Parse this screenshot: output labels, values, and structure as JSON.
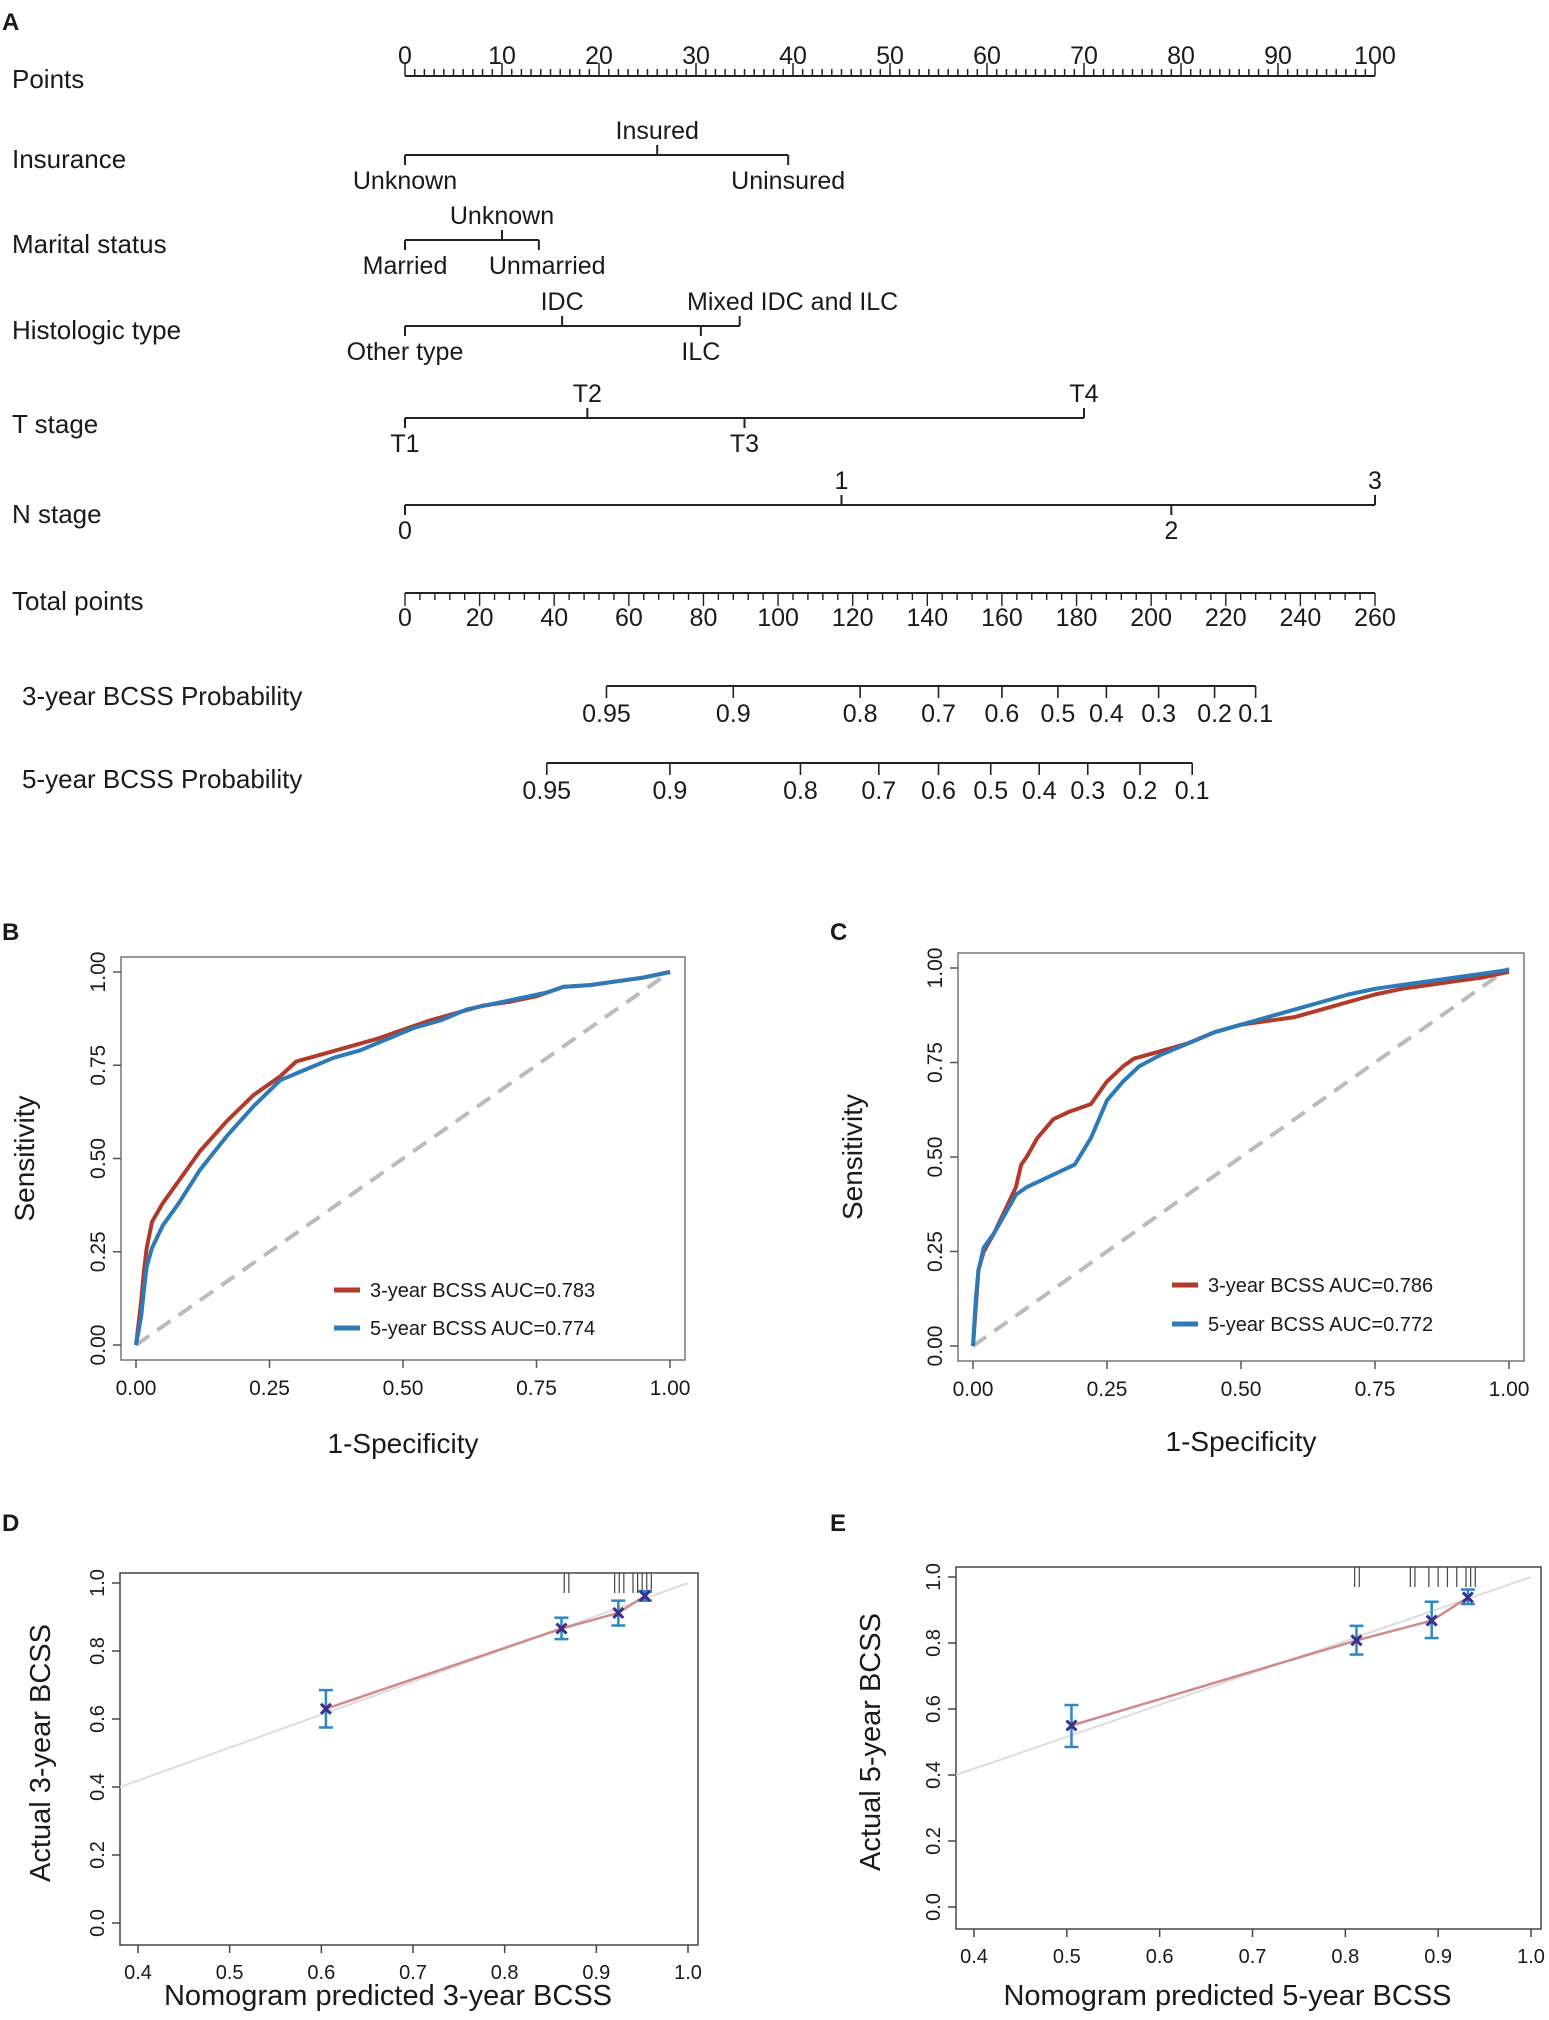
{
  "panels": {
    "A": "A",
    "B": "B",
    "C": "C",
    "D": "D",
    "E": "E"
  },
  "chart_data": [
    {
      "type": "nomogram",
      "panel": "A",
      "points_axis": {
        "label": "Points",
        "range": [
          0,
          100
        ],
        "tick_labels": [
          "0",
          "10",
          "20",
          "30",
          "40",
          "50",
          "60",
          "70",
          "80",
          "90",
          "100"
        ],
        "tick_values": [
          0,
          10,
          20,
          30,
          40,
          50,
          60,
          70,
          80,
          90,
          100
        ]
      },
      "variables": [
        {
          "label": "Insurance",
          "levels": [
            {
              "name": "Unknown",
              "points": 0,
              "side": "below"
            },
            {
              "name": "Insured",
              "points": 26,
              "side": "above"
            },
            {
              "name": "Uninsured",
              "points": 39.5,
              "side": "below"
            }
          ]
        },
        {
          "label": "Marital status",
          "levels": [
            {
              "name": "Married",
              "points": 0,
              "side": "below"
            },
            {
              "name": "Unknown",
              "points": 10,
              "side": "above"
            },
            {
              "name": "Unmarried",
              "points": 13.8,
              "side": "below"
            }
          ]
        },
        {
          "label": "Histologic type",
          "levels": [
            {
              "name": "Other type",
              "points": 0,
              "side": "below"
            },
            {
              "name": "IDC",
              "points": 16.2,
              "side": "above"
            },
            {
              "name": "ILC",
              "points": 30.5,
              "side": "below"
            },
            {
              "name": "Mixed IDC and ILC",
              "points": 34.5,
              "side": "above"
            }
          ]
        },
        {
          "label": "T stage",
          "levels": [
            {
              "name": "T1",
              "points": 0,
              "side": "below"
            },
            {
              "name": "T2",
              "points": 18.8,
              "side": "above"
            },
            {
              "name": "T3",
              "points": 35,
              "side": "below"
            },
            {
              "name": "T4",
              "points": 70,
              "side": "above"
            }
          ]
        },
        {
          "label": "N stage",
          "levels": [
            {
              "name": "0",
              "points": 0,
              "side": "below"
            },
            {
              "name": "1",
              "points": 45,
              "side": "above"
            },
            {
              "name": "2",
              "points": 79,
              "side": "below"
            },
            {
              "name": "3",
              "points": 100,
              "side": "above"
            }
          ]
        }
      ],
      "total_points_axis": {
        "label": "Total points",
        "range": [
          0,
          260
        ],
        "tick_labels": [
          "0",
          "20",
          "40",
          "60",
          "80",
          "100",
          "120",
          "140",
          "160",
          "180",
          "200",
          "220",
          "240",
          "260"
        ],
        "tick_values": [
          0,
          20,
          40,
          60,
          80,
          100,
          120,
          140,
          160,
          180,
          200,
          220,
          240,
          260
        ]
      },
      "probability_axes": [
        {
          "label": "3-year BCSS Probability",
          "tick_labels": [
            "0.95",
            "0.9",
            "0.8",
            "0.7",
            "0.6",
            "0.5",
            "0.4",
            "0.3",
            "0.2",
            "0.1"
          ],
          "total_points_at_ticks": [
            54,
            88,
            122,
            143,
            160,
            175,
            188,
            202,
            217,
            228
          ]
        },
        {
          "label": "5-year BCSS Probability",
          "tick_labels": [
            "0.95",
            "0.9",
            "0.8",
            "0.7",
            "0.6",
            "0.5",
            "0.4",
            "0.3",
            "0.2",
            "0.1"
          ],
          "total_points_at_ticks": [
            38,
            71,
            106,
            127,
            143,
            157,
            170,
            183,
            197,
            211
          ]
        }
      ]
    },
    {
      "type": "line",
      "panel": "B",
      "xlabel": "1-Specificity",
      "ylabel": "Sensitivity",
      "xlim": [
        0,
        1
      ],
      "ylim": [
        0,
        1
      ],
      "x_ticks": [
        "0.00",
        "0.25",
        "0.50",
        "0.75",
        "1.00"
      ],
      "y_ticks": [
        "0.00",
        "0.25",
        "0.50",
        "0.75",
        "1.00"
      ],
      "reference_line": "diagonal, dashed grey",
      "legend_position": "bottom-right",
      "series": [
        {
          "name": "3-year BCSS AUC=0.783",
          "color": "#b23a2a",
          "x": [
            0,
            0.005,
            0.01,
            0.015,
            0.02,
            0.03,
            0.05,
            0.08,
            0.12,
            0.17,
            0.22,
            0.27,
            0.3,
            0.35,
            0.4,
            0.45,
            0.5,
            0.55,
            0.6,
            0.65,
            0.7,
            0.75,
            0.8,
            0.85,
            0.9,
            0.95,
            1.0
          ],
          "y": [
            0,
            0.06,
            0.12,
            0.2,
            0.26,
            0.33,
            0.38,
            0.44,
            0.52,
            0.6,
            0.67,
            0.72,
            0.76,
            0.78,
            0.8,
            0.82,
            0.845,
            0.87,
            0.89,
            0.91,
            0.92,
            0.935,
            0.96,
            0.965,
            0.975,
            0.985,
            1.0
          ]
        },
        {
          "name": "5-year BCSS AUC=0.774",
          "color": "#2e7ab8",
          "x": [
            0,
            0.005,
            0.01,
            0.015,
            0.02,
            0.03,
            0.05,
            0.08,
            0.12,
            0.17,
            0.22,
            0.27,
            0.32,
            0.37,
            0.42,
            0.47,
            0.52,
            0.57,
            0.62,
            0.67,
            0.72,
            0.77,
            0.8,
            0.85,
            0.9,
            0.95,
            1.0
          ],
          "y": [
            0,
            0.04,
            0.08,
            0.15,
            0.21,
            0.26,
            0.32,
            0.38,
            0.47,
            0.56,
            0.64,
            0.71,
            0.74,
            0.77,
            0.79,
            0.82,
            0.85,
            0.87,
            0.9,
            0.915,
            0.93,
            0.945,
            0.96,
            0.965,
            0.975,
            0.985,
            1.0
          ]
        }
      ]
    },
    {
      "type": "line",
      "panel": "C",
      "xlabel": "1-Specificity",
      "ylabel": "Sensitivity",
      "xlim": [
        0,
        1
      ],
      "ylim": [
        0,
        1
      ],
      "x_ticks": [
        "0.00",
        "0.25",
        "0.50",
        "0.75",
        "1.00"
      ],
      "y_ticks": [
        "0.00",
        "0.25",
        "0.50",
        "0.75",
        "1.00"
      ],
      "reference_line": "diagonal, dashed grey",
      "legend_position": "bottom-right",
      "series": [
        {
          "name": "3-year BCSS AUC=0.786",
          "color": "#b23a2a",
          "x": [
            0,
            0.005,
            0.01,
            0.02,
            0.04,
            0.06,
            0.08,
            0.09,
            0.1,
            0.12,
            0.15,
            0.18,
            0.22,
            0.25,
            0.28,
            0.3,
            0.35,
            0.4,
            0.45,
            0.5,
            0.55,
            0.6,
            0.65,
            0.7,
            0.75,
            0.8,
            0.85,
            0.9,
            0.95,
            1.0
          ],
          "y": [
            0,
            0.1,
            0.2,
            0.25,
            0.3,
            0.36,
            0.42,
            0.48,
            0.5,
            0.55,
            0.6,
            0.62,
            0.64,
            0.7,
            0.74,
            0.76,
            0.78,
            0.8,
            0.83,
            0.85,
            0.86,
            0.87,
            0.89,
            0.91,
            0.93,
            0.945,
            0.955,
            0.965,
            0.975,
            0.99
          ]
        },
        {
          "name": "5-year BCSS AUC=0.772",
          "color": "#2e7ab8",
          "x": [
            0,
            0.005,
            0.01,
            0.02,
            0.04,
            0.06,
            0.08,
            0.1,
            0.13,
            0.16,
            0.19,
            0.22,
            0.25,
            0.28,
            0.31,
            0.35,
            0.4,
            0.45,
            0.5,
            0.55,
            0.6,
            0.65,
            0.7,
            0.75,
            0.8,
            0.85,
            0.9,
            0.95,
            1.0
          ],
          "y": [
            0,
            0.12,
            0.2,
            0.26,
            0.3,
            0.35,
            0.4,
            0.42,
            0.44,
            0.46,
            0.48,
            0.55,
            0.65,
            0.7,
            0.74,
            0.77,
            0.8,
            0.83,
            0.85,
            0.87,
            0.89,
            0.91,
            0.93,
            0.945,
            0.955,
            0.965,
            0.975,
            0.985,
            0.995
          ]
        }
      ]
    },
    {
      "type": "scatter",
      "panel": "D",
      "subtype": "calibration",
      "xlabel": "Nomogram predicted 3-year BCSS",
      "ylabel": "Actual 3-year BCSS",
      "xlim": [
        0.4,
        1.0
      ],
      "ylim": [
        0.0,
        1.0
      ],
      "x_ticks": [
        "0.4",
        "0.5",
        "0.6",
        "0.7",
        "0.8",
        "0.9",
        "1.0"
      ],
      "y_ticks": [
        "0.0",
        "0.2",
        "0.4",
        "0.6",
        "0.8",
        "1.0"
      ],
      "points": [
        {
          "x": 0.605,
          "y": 0.63,
          "lower": 0.575,
          "upper": 0.685
        },
        {
          "x": 0.862,
          "y": 0.866,
          "lower": 0.835,
          "upper": 0.898
        },
        {
          "x": 0.924,
          "y": 0.912,
          "lower": 0.875,
          "upper": 0.948
        },
        {
          "x": 0.953,
          "y": 0.962,
          "lower": 0.948,
          "upper": 0.976
        }
      ],
      "rug_x": [
        0.865,
        0.87,
        0.92,
        0.925,
        0.93,
        0.94,
        0.945,
        0.95,
        0.955,
        0.96
      ],
      "ideal_line": "diagonal, faint grey"
    },
    {
      "type": "scatter",
      "panel": "E",
      "subtype": "calibration",
      "xlabel": "Nomogram predicted 5-year BCSS",
      "ylabel": "Actual 5-year BCSS",
      "xlim": [
        0.4,
        1.0
      ],
      "ylim": [
        0.0,
        1.0
      ],
      "x_ticks": [
        "0.4",
        "0.5",
        "0.6",
        "0.7",
        "0.8",
        "0.9",
        "1.0"
      ],
      "y_ticks": [
        "0.0",
        "0.2",
        "0.4",
        "0.6",
        "0.8",
        "1.0"
      ],
      "points": [
        {
          "x": 0.505,
          "y": 0.55,
          "lower": 0.485,
          "upper": 0.612
        },
        {
          "x": 0.812,
          "y": 0.808,
          "lower": 0.765,
          "upper": 0.852
        },
        {
          "x": 0.893,
          "y": 0.868,
          "lower": 0.815,
          "upper": 0.925
        },
        {
          "x": 0.932,
          "y": 0.938,
          "lower": 0.918,
          "upper": 0.962
        }
      ],
      "rug_x": [
        0.81,
        0.815,
        0.87,
        0.875,
        0.89,
        0.9,
        0.91,
        0.92,
        0.93,
        0.935,
        0.94
      ],
      "ideal_line": "diagonal, faint grey"
    }
  ]
}
